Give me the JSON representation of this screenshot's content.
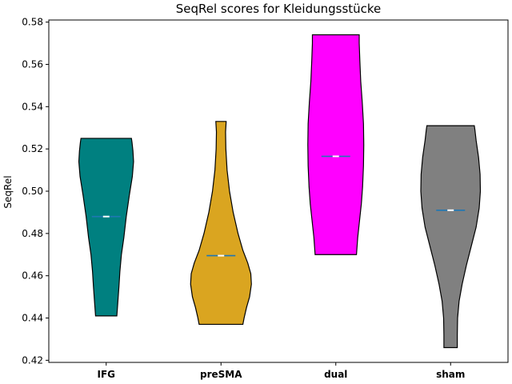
{
  "chart_data": {
    "type": "violin",
    "title": "SeqRel scores for Kleidungsstücke",
    "xlabel": "",
    "ylabel": "SeqRel",
    "ylim": [
      0.419,
      0.581
    ],
    "yticks": [
      0.42,
      0.44,
      0.46,
      0.48,
      0.5,
      0.52,
      0.54,
      0.56,
      0.58
    ],
    "ytick_labels": [
      "0.42",
      "0.44",
      "0.46",
      "0.48",
      "0.50",
      "0.52",
      "0.54",
      "0.56",
      "0.58"
    ],
    "grid": false,
    "categories": [
      "IFG",
      "preSMA",
      "dual",
      "sham"
    ],
    "series": [
      {
        "category": "IFG",
        "color": "#008080",
        "min": 0.441,
        "max": 0.525,
        "median": 0.488,
        "mean": 0.488,
        "profile": [
          [
            0.441,
            0.35
          ],
          [
            0.447,
            0.38
          ],
          [
            0.455,
            0.42
          ],
          [
            0.462,
            0.45
          ],
          [
            0.47,
            0.5
          ],
          [
            0.478,
            0.58
          ],
          [
            0.488,
            0.66
          ],
          [
            0.498,
            0.76
          ],
          [
            0.507,
            0.86
          ],
          [
            0.514,
            0.9
          ],
          [
            0.519,
            0.88
          ],
          [
            0.523,
            0.85
          ],
          [
            0.525,
            0.83
          ]
        ]
      },
      {
        "category": "preSMA",
        "color": "#DAA520",
        "min": 0.437,
        "max": 0.533,
        "median": 0.4695,
        "mean": 0.4695,
        "profile": [
          [
            0.437,
            0.72
          ],
          [
            0.44,
            0.76
          ],
          [
            0.445,
            0.84
          ],
          [
            0.45,
            0.94
          ],
          [
            0.456,
            1.0
          ],
          [
            0.461,
            0.98
          ],
          [
            0.466,
            0.88
          ],
          [
            0.472,
            0.72
          ],
          [
            0.48,
            0.56
          ],
          [
            0.49,
            0.4
          ],
          [
            0.5,
            0.28
          ],
          [
            0.51,
            0.2
          ],
          [
            0.52,
            0.16
          ],
          [
            0.528,
            0.15
          ],
          [
            0.533,
            0.17
          ]
        ]
      },
      {
        "category": "dual",
        "color": "#FF00FF",
        "min": 0.47,
        "max": 0.574,
        "median": 0.5165,
        "mean": 0.5165,
        "profile": [
          [
            0.47,
            0.68
          ],
          [
            0.478,
            0.72
          ],
          [
            0.486,
            0.78
          ],
          [
            0.494,
            0.84
          ],
          [
            0.502,
            0.88
          ],
          [
            0.512,
            0.91
          ],
          [
            0.522,
            0.92
          ],
          [
            0.532,
            0.91
          ],
          [
            0.542,
            0.87
          ],
          [
            0.552,
            0.82
          ],
          [
            0.562,
            0.79
          ],
          [
            0.57,
            0.77
          ],
          [
            0.574,
            0.77
          ]
        ]
      },
      {
        "category": "sham",
        "color": "#808080",
        "min": 0.426,
        "max": 0.531,
        "median": 0.491,
        "mean": 0.491,
        "profile": [
          [
            0.426,
            0.22
          ],
          [
            0.432,
            0.22
          ],
          [
            0.44,
            0.23
          ],
          [
            0.448,
            0.28
          ],
          [
            0.456,
            0.38
          ],
          [
            0.465,
            0.52
          ],
          [
            0.474,
            0.68
          ],
          [
            0.483,
            0.84
          ],
          [
            0.492,
            0.94
          ],
          [
            0.5,
            0.98
          ],
          [
            0.508,
            0.97
          ],
          [
            0.516,
            0.92
          ],
          [
            0.524,
            0.84
          ],
          [
            0.529,
            0.8
          ],
          [
            0.531,
            0.78
          ]
        ]
      }
    ],
    "median_line_color": "#ffffff",
    "mean_line_color": "#1f77b4"
  }
}
